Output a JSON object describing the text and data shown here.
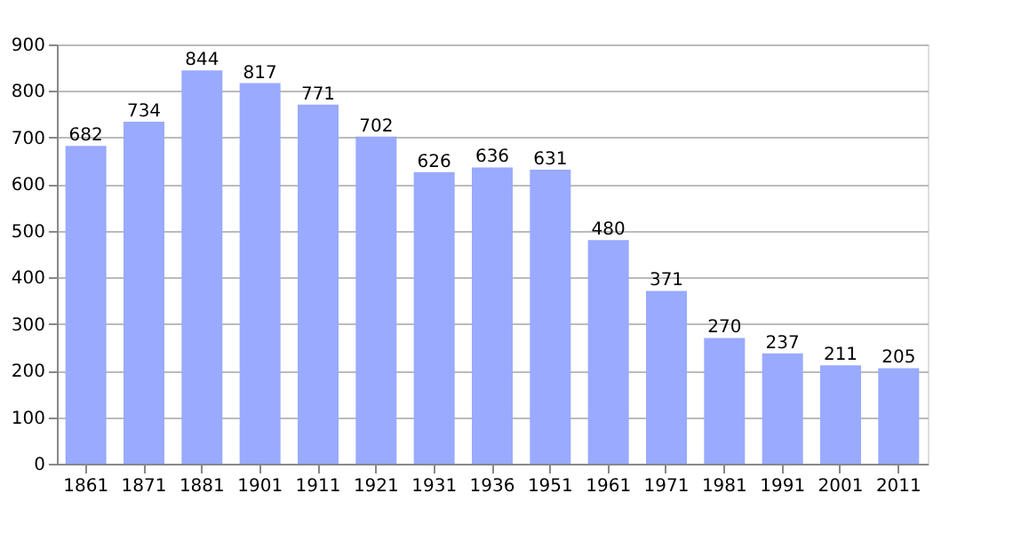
{
  "chart_data": {
    "type": "bar",
    "categories": [
      "1861",
      "1871",
      "1881",
      "1901",
      "1911",
      "1921",
      "1931",
      "1936",
      "1951",
      "1961",
      "1971",
      "1981",
      "1991",
      "2001",
      "2011"
    ],
    "values": [
      682,
      734,
      844,
      817,
      771,
      702,
      626,
      636,
      631,
      480,
      371,
      270,
      237,
      211,
      205
    ],
    "color": "#99aaff",
    "ylim": [
      0,
      900
    ],
    "yticks": [
      0,
      100,
      200,
      300,
      400,
      500,
      600,
      700,
      800,
      900
    ],
    "grid": "y",
    "data_labels": true
  }
}
